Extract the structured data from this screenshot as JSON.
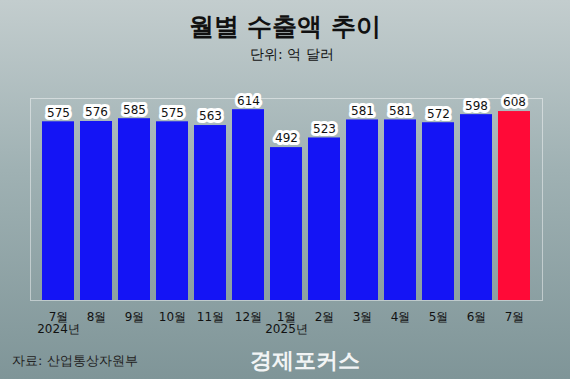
{
  "chart_data": {
    "type": "bar",
    "title": "월별 수출액 추이",
    "subtitle": "단위: 억 달러",
    "caption": "자료: 산업통상자원부",
    "annotations": [
      "경제포커스"
    ],
    "categories": [
      "7월\n2024년",
      "8월",
      "9월",
      "10월",
      "11월",
      "12월",
      "1월\n2025년",
      "2월",
      "3월",
      "4월",
      "5월",
      "6월",
      "7월"
    ],
    "values": [
      575,
      576,
      585,
      575,
      563,
      614,
      492,
      523,
      581,
      581,
      572,
      598,
      608
    ],
    "colors": [
      "#1414f5",
      "#1414f5",
      "#1414f5",
      "#1414f5",
      "#1414f5",
      "#1414f5",
      "#1414f5",
      "#1414f5",
      "#1414f5",
      "#1414f5",
      "#1414f5",
      "#1414f5",
      "#ff0a37"
    ],
    "ylim": [
      0,
      650
    ],
    "data_labels": true,
    "tick_labels": "x",
    "grid": false
  }
}
